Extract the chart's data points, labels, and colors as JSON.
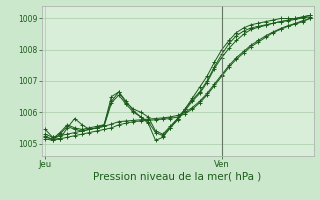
{
  "background_color": "#cce8cc",
  "plot_bg_color": "#d8eed8",
  "grid_color": "#aaccaa",
  "line_color": "#1a5c1a",
  "ven_line_color": "#667766",
  "title": "Pression niveau de la mer( hPa )",
  "xlabel_jeu": "Jeu",
  "xlabel_ven": "Ven",
  "ylim": [
    1004.6,
    1009.4
  ],
  "yticks": [
    1005,
    1006,
    1007,
    1008,
    1009
  ],
  "n_points": 37,
  "ven_idx": 24,
  "series": [
    [
      1005.2,
      1005.15,
      1005.35,
      1005.6,
      1005.5,
      1005.45,
      1005.5,
      1005.55,
      1005.6,
      1006.35,
      1006.65,
      1006.3,
      1006.1,
      1006.0,
      1005.85,
      1005.4,
      1005.3,
      1005.55,
      1005.8,
      1006.1,
      1006.45,
      1006.8,
      1007.15,
      1007.6,
      1008.0,
      1008.3,
      1008.55,
      1008.7,
      1008.8,
      1008.85,
      1008.9,
      1008.95,
      1009.0,
      1009.0,
      1009.0,
      1009.05,
      1009.1
    ],
    [
      1005.25,
      1005.1,
      1005.15,
      1005.2,
      1005.25,
      1005.3,
      1005.35,
      1005.4,
      1005.45,
      1005.5,
      1005.6,
      1005.65,
      1005.7,
      1005.72,
      1005.74,
      1005.76,
      1005.78,
      1005.8,
      1005.85,
      1005.95,
      1006.1,
      1006.3,
      1006.55,
      1006.85,
      1007.15,
      1007.45,
      1007.7,
      1007.9,
      1008.1,
      1008.25,
      1008.4,
      1008.55,
      1008.65,
      1008.75,
      1008.82,
      1008.9,
      1009.0
    ],
    [
      1005.3,
      1005.2,
      1005.25,
      1005.3,
      1005.35,
      1005.4,
      1005.45,
      1005.5,
      1005.55,
      1005.62,
      1005.7,
      1005.72,
      1005.74,
      1005.76,
      1005.78,
      1005.8,
      1005.82,
      1005.85,
      1005.9,
      1006.0,
      1006.15,
      1006.35,
      1006.6,
      1006.9,
      1007.2,
      1007.5,
      1007.75,
      1007.95,
      1008.15,
      1008.3,
      1008.45,
      1008.57,
      1008.68,
      1008.77,
      1008.84,
      1008.93,
      1009.0
    ],
    [
      1005.45,
      1005.2,
      1005.15,
      1005.5,
      1005.8,
      1005.6,
      1005.45,
      1005.5,
      1005.6,
      1006.5,
      1006.65,
      1006.35,
      1006.05,
      1005.85,
      1005.65,
      1005.1,
      1005.2,
      1005.5,
      1005.8,
      1006.1,
      1006.4,
      1006.65,
      1007.0,
      1007.45,
      1007.85,
      1008.2,
      1008.45,
      1008.6,
      1008.7,
      1008.75,
      1008.8,
      1008.85,
      1008.9,
      1008.95,
      1009.0,
      1009.05,
      1009.1
    ],
    [
      1005.15,
      1005.1,
      1005.3,
      1005.55,
      1005.45,
      1005.4,
      1005.45,
      1005.5,
      1005.55,
      1006.3,
      1006.55,
      1006.25,
      1006.0,
      1005.85,
      1005.7,
      1005.35,
      1005.25,
      1005.5,
      1005.75,
      1006.05,
      1006.35,
      1006.6,
      1006.95,
      1007.4,
      1007.75,
      1008.05,
      1008.3,
      1008.5,
      1008.65,
      1008.72,
      1008.78,
      1008.85,
      1008.9,
      1008.93,
      1008.97,
      1009.02,
      1009.05
    ]
  ]
}
